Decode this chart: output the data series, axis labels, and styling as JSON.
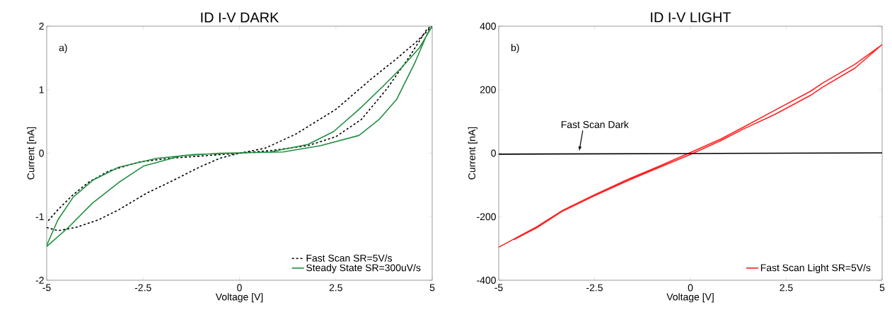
{
  "chart_data": [
    {
      "type": "line",
      "title": "ID I-V DARK",
      "xlabel": "Voltage [V]",
      "ylabel": "Current [nA]",
      "xlim": [
        -5,
        5
      ],
      "ylim": [
        -2,
        2
      ],
      "xticks": [
        -5,
        -2.5,
        0,
        2.5,
        5
      ],
      "yticks": [
        -2,
        -1,
        0,
        1,
        2
      ],
      "grid": false,
      "legend": "bottom right",
      "annotations": [
        "a)"
      ],
      "series": [
        {
          "name": "Fast Scan SR=5V/s",
          "color": "#000000",
          "line_style": "dashed",
          "x": [
            -5,
            -4.71,
            -4.25,
            -3.66,
            -3.13,
            -2.41,
            -1.69,
            -1.04,
            -0.51,
            0,
            0.8,
            1.78,
            2.5,
            3.16,
            3.82,
            4.41,
            4.87,
            5,
            4.6,
            4.08,
            3.42,
            2.5,
            1.46,
            0.67,
            0,
            -0.9,
            -1.82,
            -2.61,
            -3.39,
            -3.92,
            -4.31,
            -4.71,
            -5
          ],
          "values": [
            -1.17,
            -1.22,
            -1.17,
            -1.05,
            -0.89,
            -0.63,
            -0.42,
            -0.22,
            -0.08,
            0,
            0.04,
            0.12,
            0.26,
            0.53,
            1.01,
            1.52,
            1.96,
            2.0,
            1.76,
            1.49,
            1.17,
            0.69,
            0.3,
            0.08,
            0,
            -0.04,
            -0.08,
            -0.14,
            -0.28,
            -0.46,
            -0.65,
            -0.89,
            -1.09
          ]
        },
        {
          "name": "Steady State SR=300uV/s",
          "color": "#1f8f3f",
          "line_style": "solid",
          "x": [
            -5,
            -4.44,
            -3.82,
            -3.13,
            -2.48,
            -1.5,
            -0.51,
            1.13,
            2.11,
            3.1,
            3.62,
            4.08,
            4.54,
            4.87,
            5,
            4.67,
            4.21,
            3.75,
            3.1,
            2.44,
            1.78,
            0.8,
            -1.17,
            -2.15,
            -3.13,
            -3.79,
            -4.31,
            -4.71,
            -5
          ],
          "values": [
            -1.47,
            -1.17,
            -0.79,
            -0.46,
            -0.2,
            -0.04,
            0,
            0.02,
            0.12,
            0.28,
            0.53,
            0.85,
            1.41,
            1.88,
            2.0,
            1.66,
            1.35,
            1.07,
            0.69,
            0.34,
            0.14,
            0.02,
            -0.02,
            -0.08,
            -0.22,
            -0.42,
            -0.69,
            -1.05,
            -1.45
          ]
        }
      ]
    },
    {
      "type": "line",
      "title": "ID I-V LIGHT",
      "xlabel": "Voltage [V]",
      "ylabel": "Current [nA]",
      "xlim": [
        -5,
        5
      ],
      "ylim": [
        -400,
        400
      ],
      "xticks": [
        -5,
        -2.5,
        0,
        2.5,
        5
      ],
      "yticks": [
        -400,
        -200,
        0,
        200,
        400
      ],
      "grid": false,
      "legend": "bottom right",
      "annotations": [
        "b)",
        {
          "text": "Fast Scan Dark",
          "x": -2.9,
          "y": 0
        }
      ],
      "series": [
        {
          "name": "Fast Scan Light SR=5V/s",
          "color": "#ff2020",
          "line_style": "solid",
          "x": [
            -5,
            -4,
            -3.33,
            -2.5,
            -1.59,
            -0.8,
            0,
            0.8,
            1.38,
            2.2,
            3.13,
            3.45,
            4.29,
            5,
            4.29,
            3.45,
            3.13,
            2.2,
            1.38,
            0.8,
            0,
            -0.8,
            -1.59,
            -2.5,
            -3.33,
            -4,
            -4.6
          ],
          "values": [
            -296,
            -231,
            -180,
            -131,
            -80,
            -40,
            2,
            45,
            82,
            135,
            195,
            221,
            280,
            342,
            268,
            208,
            182,
            122,
            76,
            40,
            -4,
            -44,
            -84,
            -134,
            -182,
            -234,
            -272
          ]
        },
        {
          "color": "#000000",
          "line_style": "solid",
          "x": [
            -5,
            0,
            5
          ],
          "values": [
            -3,
            -1,
            1
          ]
        }
      ]
    }
  ]
}
